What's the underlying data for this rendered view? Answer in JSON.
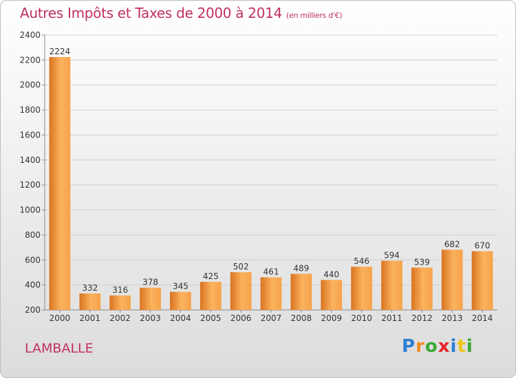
{
  "title": "Autres Impôts et Taxes de 2000 à 2014",
  "subtitle": "(en milliers d'€)",
  "city": "LAMBALLE",
  "logo": {
    "letters": [
      "P",
      "r",
      "o",
      "x",
      "i",
      "t",
      "i"
    ],
    "colors": [
      "#2a7fd4",
      "#f08a1c",
      "#3aa935",
      "#e9242b",
      "#2a7fd4",
      "#f0c419",
      "#3aa935"
    ]
  },
  "colors": {
    "title": "#c0305f",
    "bar_light": "#fbb25e",
    "bar_dark": "#d9731f"
  },
  "chart_data": {
    "type": "bar",
    "title": "Autres Impôts et Taxes de 2000 à 2014",
    "subtitle": "(en milliers d'€)",
    "categories": [
      "2000",
      "2001",
      "2002",
      "2003",
      "2004",
      "2005",
      "2006",
      "2007",
      "2008",
      "2009",
      "2010",
      "2011",
      "2012",
      "2013",
      "2014"
    ],
    "values": [
      2224,
      332,
      316,
      378,
      345,
      425,
      502,
      461,
      489,
      440,
      546,
      594,
      539,
      682,
      670
    ],
    "ylim": [
      200,
      2400
    ],
    "yticks": [
      200,
      400,
      600,
      800,
      1000,
      1200,
      1400,
      1600,
      1800,
      2000,
      2200,
      2400
    ],
    "grid": true,
    "xlabel": "",
    "ylabel": ""
  }
}
